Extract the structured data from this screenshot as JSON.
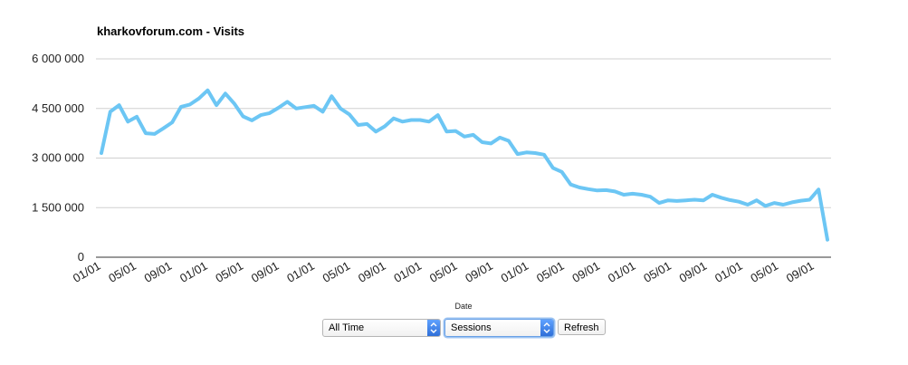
{
  "title": "kharkovforum.com - Visits",
  "controls": {
    "range_value": "All Time",
    "metric_value": "Sessions",
    "refresh_label": "Refresh"
  },
  "colors": {
    "line": "#6cc6f4",
    "grid": "#d0d0d0"
  },
  "icons": {
    "select_arrow": "chevron-updown-icon"
  },
  "chart_data": {
    "type": "line",
    "title": "kharkovforum.com - Visits",
    "xlabel": "Date",
    "ylabel": "",
    "ylim": [
      0,
      6000000
    ],
    "yticks": [
      0,
      1500000,
      3000000,
      4500000,
      6000000
    ],
    "ytick_labels": [
      "0",
      "1 500 000",
      "3 000 000",
      "4 500 000",
      "6 000 000"
    ],
    "xtick_labels": [
      "01/01",
      "05/01",
      "09/01",
      "01/01",
      "05/01",
      "09/01",
      "01/01",
      "05/01",
      "09/01",
      "01/01",
      "05/01",
      "09/01",
      "01/01",
      "05/01",
      "09/01",
      "01/01",
      "05/01",
      "09/01",
      "01/01",
      "05/01",
      "09/01"
    ],
    "grid": true,
    "legend": "none",
    "series": [
      {
        "values": [
          3150000,
          4400000,
          4600000,
          4100000,
          4250000,
          3750000,
          3730000,
          3900000,
          4080000,
          4550000,
          4620000,
          4800000,
          5050000,
          4600000,
          4950000,
          4650000,
          4260000,
          4140000,
          4300000,
          4360000,
          4520000,
          4700000,
          4500000,
          4540000,
          4580000,
          4400000,
          4870000,
          4500000,
          4320000,
          4000000,
          4030000,
          3800000,
          3960000,
          4200000,
          4100000,
          4150000,
          4150000,
          4100000,
          4300000,
          3800000,
          3820000,
          3650000,
          3700000,
          3480000,
          3440000,
          3620000,
          3520000,
          3120000,
          3170000,
          3150000,
          3100000,
          2700000,
          2580000,
          2200000,
          2110000,
          2060000,
          2020000,
          2030000,
          1990000,
          1890000,
          1920000,
          1890000,
          1830000,
          1640000,
          1720000,
          1700000,
          1720000,
          1740000,
          1720000,
          1890000,
          1800000,
          1730000,
          1680000,
          1590000,
          1720000,
          1550000,
          1640000,
          1590000,
          1660000,
          1710000,
          1740000,
          2050000,
          530000
        ]
      }
    ]
  }
}
